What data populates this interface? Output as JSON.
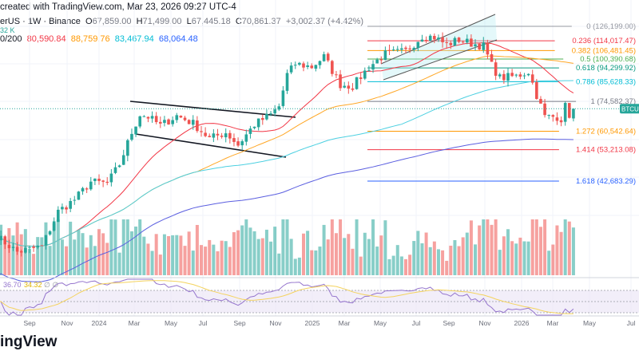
{
  "header": {
    "created": "created with TradingView.com, Mar 23, 2026 09:27 UTC-4",
    "symbol": "erUS · 1W · Binance",
    "o_label": "O",
    "o": "67,859.00",
    "h_label": "H",
    "h": "71,499.00",
    "l_label": "L",
    "l": "67,445.18",
    "c_label": "C",
    "c": "70,861.37",
    "change": "+3,002.37 (+4.42%)",
    "volume": "32 K",
    "ma_label": "0/200",
    "ma_values": [
      "80,590.84",
      "88,759.76",
      "83,467.94",
      "68,064.48"
    ]
  },
  "price_label": "BTCUSD",
  "footer": "ingView",
  "colors": {
    "up": "#26a69a",
    "down": "#ef5350",
    "ma20": "#f23645",
    "ma50": "#ffa726",
    "ma100": "#4dd0e1",
    "ma200": "#5b5fe0",
    "rsi": "#9575cd",
    "rsi_ma": "#f4d35e"
  },
  "chart_data": {
    "type": "candlestick",
    "scale": "log",
    "interval": "1W",
    "x_ticks": [
      "Sep",
      "Nov",
      "2024",
      "Mar",
      "May",
      "Jul",
      "Sep",
      "Nov",
      "2025",
      "Mar",
      "May",
      "Jul",
      "Sep",
      "Nov",
      "2026",
      "Mar",
      "May",
      "Jul"
    ],
    "price_keypoints_week_from_2024": [
      [
        -25,
        29000
      ],
      [
        -20,
        26000
      ],
      [
        -14,
        27000
      ],
      [
        -10,
        34500
      ],
      [
        -6,
        37500
      ],
      [
        -2,
        42500
      ],
      [
        2,
        42000
      ],
      [
        5,
        48000
      ],
      [
        8,
        60000
      ],
      [
        10,
        68000
      ],
      [
        12,
        67000
      ],
      [
        15,
        63000
      ],
      [
        19,
        67500
      ],
      [
        23,
        64000
      ],
      [
        27,
        57500
      ],
      [
        31,
        60000
      ],
      [
        34,
        55000
      ],
      [
        38,
        63500
      ],
      [
        42,
        68000
      ],
      [
        44,
        72000
      ],
      [
        46,
        90000
      ],
      [
        48,
        97000
      ],
      [
        52,
        95000
      ],
      [
        55,
        102000
      ],
      [
        59,
        84000
      ],
      [
        62,
        83000
      ],
      [
        66,
        95000
      ],
      [
        70,
        104000
      ],
      [
        75,
        106000
      ],
      [
        79,
        118000
      ],
      [
        82,
        117000
      ],
      [
        85,
        111000
      ],
      [
        88,
        115000
      ],
      [
        91,
        112000
      ],
      [
        94,
        110000
      ],
      [
        96,
        96000
      ],
      [
        98,
        88000
      ],
      [
        102,
        89000
      ],
      [
        105,
        92000
      ],
      [
        107,
        78000
      ],
      [
        109,
        67000
      ],
      [
        112,
        67000
      ],
      [
        113,
        66000
      ],
      [
        114,
        72000
      ],
      [
        115,
        68000
      ],
      [
        116,
        70861
      ]
    ],
    "fib_levels": [
      {
        "ratio": "0",
        "price": 126199.0,
        "label": "0 (126,199.00)",
        "color": "#9598a1"
      },
      {
        "ratio": "0.236",
        "price": 114017.47,
        "label": "0.236 (114,017.47)",
        "color": "#f23645"
      },
      {
        "ratio": "0.382",
        "price": 106481.45,
        "label": "0.382 (106,481.45)",
        "color": "#ff9800"
      },
      {
        "ratio": "0.5",
        "price": 100390.68,
        "label": "0.5 (100,390.68)",
        "color": "#4caf50"
      },
      {
        "ratio": "0.618",
        "price": 94299.92,
        "label": "0.618 (94,299.92)",
        "color": "#089981"
      },
      {
        "ratio": "0.786",
        "price": 85628.33,
        "label": "0.786 (85,628.33)",
        "color": "#00bcd4"
      },
      {
        "ratio": "1",
        "price": 74582.37,
        "label": "1 (74,582.37)",
        "color": "#787b86"
      },
      {
        "ratio": "1.272",
        "price": 60542.64,
        "label": "1.272 (60,542.64)",
        "color": "#ff9800"
      },
      {
        "ratio": "1.414",
        "price": 53213.08,
        "label": "1.414 (53,213.08)",
        "color": "#f23645"
      },
      {
        "ratio": "1.618",
        "price": 42683.29,
        "label": "1.618 (42,683.29)",
        "color": "#2962ff"
      }
    ],
    "rsi": {
      "value": "36.70",
      "ma": "34.32",
      "extra": [
        "∅",
        "∅"
      ]
    }
  }
}
